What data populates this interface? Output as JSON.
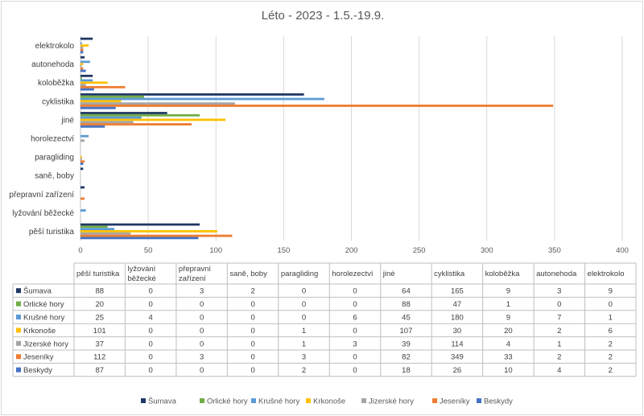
{
  "chart_data": {
    "type": "bar",
    "orientation": "horizontal",
    "title": "Léto - 2023 - 1.5.-19.9.",
    "categories": [
      "pěší turistika",
      "lyžování běžecké",
      "přepravní zařízení",
      "saně, boby",
      "paragliding",
      "horolezectví",
      "jiné",
      "cyklistika",
      "koloběžka",
      "autonehoda",
      "elektrokolo"
    ],
    "table_headers": [
      [
        "pěší turistika"
      ],
      [
        "lyžování",
        "běžecké"
      ],
      [
        "přepravní",
        "zařízení"
      ],
      [
        "saně, boby"
      ],
      [
        "paragliding"
      ],
      [
        "horolezectví"
      ],
      [
        "jiné"
      ],
      [
        "cyklistika"
      ],
      [
        "koloběžka"
      ],
      [
        "autonehoda"
      ],
      [
        "elektrokolo"
      ]
    ],
    "series": [
      {
        "name": "Šumava",
        "color": "#1f3864",
        "values": [
          88,
          0,
          3,
          2,
          0,
          0,
          64,
          165,
          9,
          3,
          9
        ]
      },
      {
        "name": "Orlické hory",
        "color": "#70ad47",
        "values": [
          20,
          0,
          0,
          0,
          0,
          0,
          88,
          47,
          1,
          0,
          0
        ]
      },
      {
        "name": "Krušné hory",
        "color": "#5b9bd5",
        "values": [
          25,
          4,
          0,
          0,
          0,
          6,
          45,
          180,
          9,
          7,
          1
        ]
      },
      {
        "name": "Krkonoše",
        "color": "#ffc000",
        "values": [
          101,
          0,
          0,
          0,
          1,
          0,
          107,
          30,
          20,
          2,
          6
        ]
      },
      {
        "name": "Jizerské hory",
        "color": "#a5a5a5",
        "values": [
          37,
          0,
          0,
          0,
          1,
          3,
          39,
          114,
          4,
          1,
          2
        ]
      },
      {
        "name": "Jeseníky",
        "color": "#ed7d31",
        "values": [
          112,
          0,
          3,
          0,
          3,
          0,
          82,
          349,
          33,
          2,
          2
        ]
      },
      {
        "name": "Beskydy",
        "color": "#4472c4",
        "values": [
          87,
          0,
          0,
          0,
          2,
          0,
          18,
          26,
          10,
          4,
          2
        ]
      }
    ],
    "xlim": [
      0,
      400
    ],
    "xticks": [
      0,
      50,
      100,
      150,
      200,
      250,
      300,
      350,
      400
    ],
    "grid": true,
    "legend": "bottom",
    "data_table": true
  }
}
